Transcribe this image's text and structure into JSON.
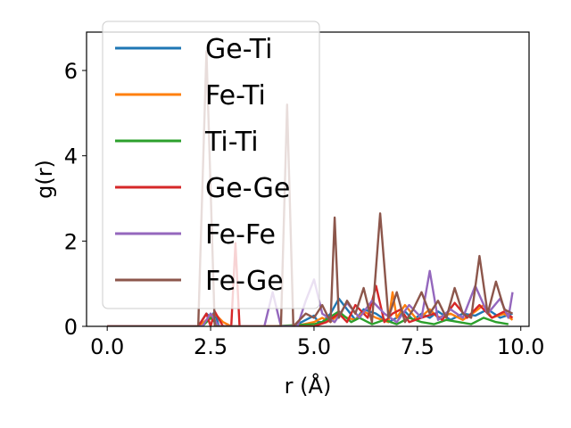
{
  "chart_data": {
    "type": "line",
    "xlabel": "r (Å)",
    "ylabel": "g(r)",
    "xlim": [
      -0.5,
      10.2
    ],
    "ylim": [
      0,
      6.9
    ],
    "xticks": [
      0.0,
      2.5,
      5.0,
      7.5,
      10.0
    ],
    "xtick_labels": [
      "0.0",
      "2.5",
      "5.0",
      "7.5",
      "10.0"
    ],
    "yticks": [
      0,
      2,
      4,
      6
    ],
    "ytick_labels": [
      "0",
      "2",
      "4",
      "6"
    ],
    "grid": false,
    "legend_position": "upper-left",
    "series": [
      {
        "name": "Ge-Ti",
        "color": "#1f77b4",
        "x": [
          0,
          2.2,
          2.4,
          2.5,
          2.6,
          2.7,
          3.4,
          3.8,
          4.0,
          4.5,
          4.8,
          5.0,
          5.1,
          5.2,
          5.4,
          5.6,
          5.8,
          6.0,
          6.2,
          6.5,
          6.8,
          7.0,
          7.2,
          7.4,
          7.6,
          7.8,
          8.0,
          8.3,
          8.6,
          8.9,
          9.2,
          9.5,
          9.8
        ],
        "y": [
          0,
          0,
          0.3,
          0.2,
          0.35,
          0,
          0,
          0,
          0,
          0,
          0.15,
          0.25,
          0.1,
          0.1,
          0.3,
          0.65,
          0.4,
          0.15,
          0.4,
          0.3,
          0.1,
          0.2,
          0.35,
          0.15,
          0.3,
          0.2,
          0.35,
          0.15,
          0.3,
          0.25,
          0.4,
          0.2,
          0.3
        ]
      },
      {
        "name": "Fe-Ti",
        "color": "#ff7f0e",
        "x": [
          0,
          2.2,
          2.4,
          2.6,
          2.8,
          3.0,
          3.4,
          4.0,
          4.5,
          5.0,
          5.2,
          5.4,
          5.6,
          5.8,
          6.0,
          6.2,
          6.5,
          6.8,
          6.9,
          7.0,
          7.2,
          7.5,
          7.8,
          8.0,
          8.3,
          8.6,
          8.9,
          9.1,
          9.3,
          9.6,
          9.8
        ],
        "y": [
          0,
          0,
          0.15,
          0.3,
          0.1,
          0,
          0,
          0,
          0,
          0.1,
          0.2,
          0.1,
          0.3,
          0.2,
          0.15,
          0.35,
          0.2,
          0.1,
          0.8,
          0.2,
          0.5,
          0.15,
          0.4,
          0.2,
          0.3,
          0.15,
          0.35,
          0.5,
          0.2,
          0.3,
          0.15
        ]
      },
      {
        "name": "Ti-Ti",
        "color": "#2ca02c",
        "x": [
          0,
          2.3,
          2.5,
          2.7,
          3.0,
          4.0,
          5.0,
          5.2,
          5.6,
          5.9,
          6.1,
          6.4,
          6.7,
          7.0,
          7.3,
          7.6,
          7.9,
          8.2,
          8.5,
          8.8,
          9.1,
          9.4,
          9.7
        ],
        "y": [
          0,
          0,
          0.2,
          0,
          0,
          0,
          0.05,
          0.1,
          0.35,
          0.1,
          0.2,
          0.05,
          0.15,
          0.05,
          0.2,
          0.1,
          0.05,
          0.15,
          0.1,
          0.05,
          0.2,
          0.1,
          0.05
        ]
      },
      {
        "name": "Ge-Ge",
        "color": "#d62728",
        "x": [
          0,
          2.2,
          2.4,
          2.5,
          2.6,
          2.8,
          3.0,
          3.1,
          3.2,
          3.4,
          3.8,
          4.0,
          4.3,
          4.5,
          4.8,
          5.0,
          5.3,
          5.6,
          5.8,
          6.0,
          6.3,
          6.5,
          6.7,
          6.9,
          7.1,
          7.3,
          7.6,
          7.9,
          8.1,
          8.4,
          8.7,
          9.0,
          9.3,
          9.6,
          9.8
        ],
        "y": [
          0,
          0,
          0.3,
          0,
          0.35,
          0,
          0,
          1.95,
          0,
          0,
          0,
          0,
          0,
          0,
          0,
          0,
          0.1,
          0.3,
          0.1,
          0.5,
          0.2,
          0.95,
          0.1,
          0.3,
          0.4,
          0.1,
          0.2,
          0.3,
          0.15,
          0.55,
          0.2,
          0.5,
          0.2,
          0.35,
          0.2
        ]
      },
      {
        "name": "Fe-Fe",
        "color": "#9467bd",
        "x": [
          0,
          2.3,
          2.5,
          2.7,
          3.0,
          3.8,
          4.0,
          4.2,
          4.6,
          4.8,
          5.0,
          5.2,
          5.5,
          5.8,
          6.1,
          6.4,
          6.7,
          7.0,
          7.3,
          7.6,
          7.8,
          8.0,
          8.3,
          8.6,
          8.9,
          9.2,
          9.5,
          9.7,
          9.8
        ],
        "y": [
          0,
          0,
          0.3,
          0,
          0,
          0,
          0.8,
          0,
          0,
          0.6,
          1.1,
          0.3,
          0.1,
          0.55,
          0.2,
          0.6,
          0.3,
          0.1,
          0.5,
          0.2,
          1.3,
          0.15,
          0.4,
          0.2,
          0.95,
          0.3,
          0.65,
          0.2,
          0.8
        ]
      },
      {
        "name": "Fe-Ge",
        "color": "#8c564b",
        "x": [
          0,
          2.2,
          2.4,
          2.6,
          3.0,
          4.2,
          4.35,
          4.5,
          4.8,
          5.0,
          5.2,
          5.4,
          5.5,
          5.6,
          5.8,
          6.0,
          6.2,
          6.4,
          6.6,
          6.8,
          7.0,
          7.2,
          7.4,
          7.6,
          7.8,
          8.0,
          8.2,
          8.4,
          8.6,
          8.8,
          9.0,
          9.2,
          9.4,
          9.6,
          9.8
        ],
        "y": [
          0,
          0,
          6.45,
          0,
          0,
          0,
          5.2,
          0,
          0.3,
          0.2,
          0.5,
          0.1,
          2.55,
          0.2,
          0.6,
          0.3,
          0.9,
          0.1,
          2.65,
          0.2,
          0.8,
          0.1,
          0.4,
          0.8,
          0.3,
          0.6,
          0.2,
          0.9,
          0.3,
          0.2,
          1.65,
          0.3,
          1.05,
          0.4,
          0.3
        ]
      }
    ]
  }
}
